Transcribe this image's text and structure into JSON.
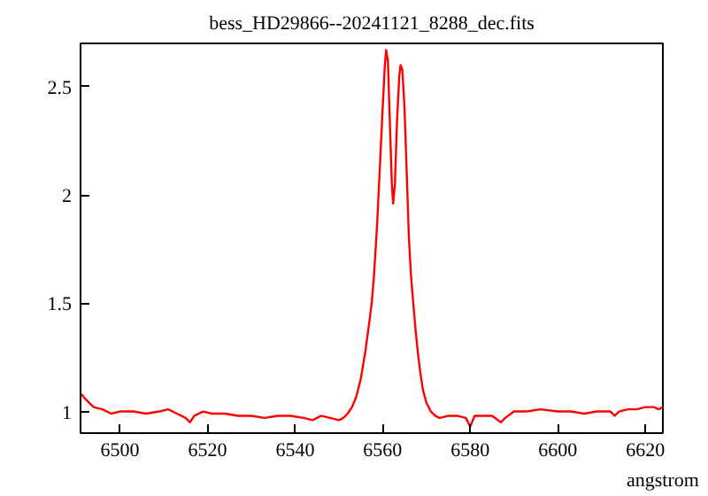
{
  "chart_data": {
    "type": "line",
    "title": "bess_HD29866--20241121_8288_dec.fits",
    "xlabel": "angstrom",
    "x": [
      6491.2,
      6492,
      6493,
      6494,
      6496,
      6498,
      6500,
      6503,
      6506,
      6509,
      6511,
      6513,
      6515,
      6516,
      6517,
      6519,
      6521,
      6524,
      6527,
      6530,
      6533,
      6536,
      6539,
      6542,
      6544,
      6546,
      6548,
      6550,
      6551,
      6552,
      6553,
      6554,
      6555,
      6556,
      6557,
      6557.5,
      6558,
      6558.7,
      6559.3,
      6560,
      6560.5,
      6560.8,
      6561.2,
      6561.7,
      6562.1,
      6562.4,
      6562.8,
      6563.3,
      6563.8,
      6564.1,
      6564.5,
      6565,
      6565.5,
      6566,
      6566.5,
      6567,
      6567.5,
      6568,
      6568.6,
      6569.2,
      6570,
      6571,
      6572,
      6573,
      6575,
      6577,
      6579,
      6580,
      6581,
      6583,
      6585,
      6587,
      6588,
      6590,
      6593,
      6596,
      6600,
      6603,
      6606,
      6609,
      6612,
      6613,
      6614,
      6616,
      6618,
      6620,
      6622,
      6623,
      6624
    ],
    "values": [
      1.08,
      1.06,
      1.04,
      1.02,
      1.01,
      0.99,
      1.0,
      1.0,
      0.99,
      1.0,
      1.01,
      0.99,
      0.97,
      0.95,
      0.98,
      1.0,
      0.99,
      0.99,
      0.98,
      0.98,
      0.97,
      0.98,
      0.98,
      0.97,
      0.96,
      0.98,
      0.97,
      0.96,
      0.97,
      0.99,
      1.02,
      1.07,
      1.15,
      1.27,
      1.42,
      1.5,
      1.62,
      1.85,
      2.1,
      2.4,
      2.6,
      2.67,
      2.62,
      2.3,
      2.05,
      1.96,
      2.05,
      2.35,
      2.55,
      2.6,
      2.58,
      2.4,
      2.1,
      1.8,
      1.62,
      1.5,
      1.38,
      1.28,
      1.18,
      1.1,
      1.04,
      1.0,
      0.98,
      0.97,
      0.98,
      0.98,
      0.97,
      0.93,
      0.98,
      0.98,
      0.98,
      0.95,
      0.97,
      1.0,
      1.0,
      1.01,
      1.0,
      1.0,
      0.99,
      1.0,
      1.0,
      0.98,
      1.0,
      1.01,
      1.01,
      1.02,
      1.02,
      1.01,
      1.02
    ],
    "color": "#ff0000",
    "xlim": [
      6491,
      6624
    ],
    "ylim": [
      0.9,
      2.7
    ],
    "xticks": [
      6500,
      6520,
      6540,
      6560,
      6580,
      6600,
      6620
    ],
    "yticks": [
      1,
      1.5,
      2,
      2.5
    ],
    "grid": false,
    "marker": "none",
    "line_style": "solid"
  }
}
